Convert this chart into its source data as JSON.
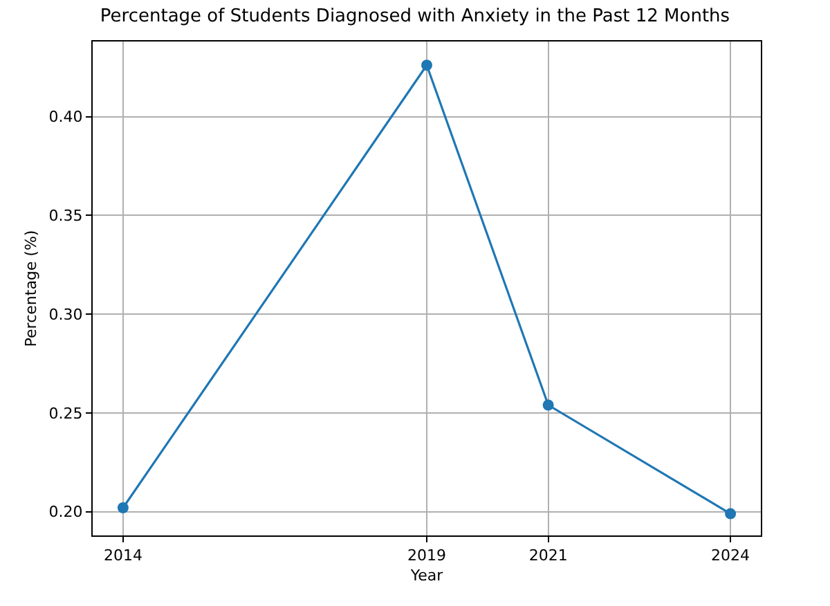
{
  "chart_data": {
    "type": "line",
    "title": "Percentage of Students Diagnosed with Anxiety in the Past 12 Months",
    "xlabel": "Year",
    "ylabel": "Percentage (%)",
    "x": [
      2014,
      2019,
      2021,
      2024
    ],
    "series": [
      {
        "color": "#1f77b4",
        "values": [
          0.202,
          0.426,
          0.254,
          0.199
        ]
      }
    ],
    "xlim": [
      2013.5,
      2024.5
    ],
    "xticks": [
      2014,
      2019,
      2021,
      2024
    ],
    "ylim": [
      0.188,
      0.438
    ],
    "yticks": [
      {
        "value": 0.2,
        "label": "0.20"
      },
      {
        "value": 0.25,
        "label": "0.25"
      },
      {
        "value": 0.3,
        "label": "0.30"
      },
      {
        "value": 0.35,
        "label": "0.35"
      },
      {
        "value": 0.4,
        "label": "0.40"
      }
    ],
    "grid": true,
    "marker": "circle",
    "line_style": "solid"
  }
}
